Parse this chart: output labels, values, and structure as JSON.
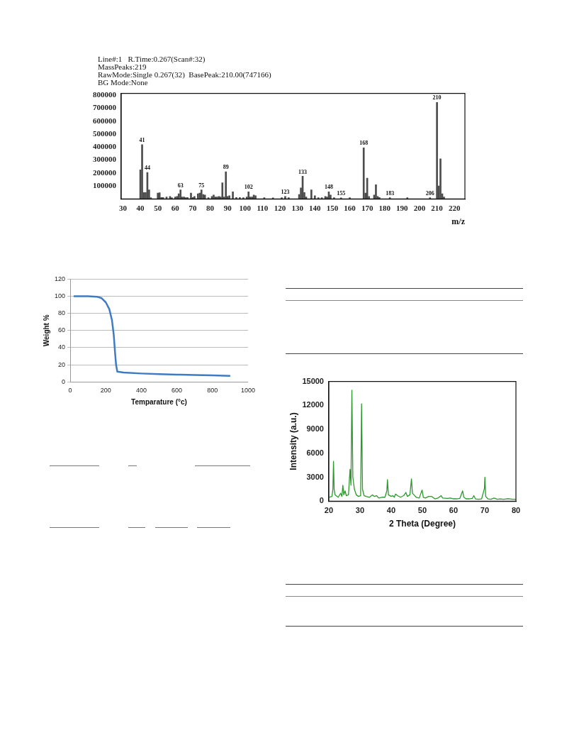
{
  "chart_data": [
    {
      "type": "bar",
      "xlabel": "m/z",
      "color": "#4d4d4d",
      "grid": false,
      "annotations": [
        "Line#:1   R.Time:0.267(Scan#:32)",
        "MassPeaks:219",
        "RawMode:Single 0.267(32)  BasePeak:210.00(747166)",
        "BG Mode:None",
        {
          "text": "41",
          "x": 41,
          "y": 420000
        },
        {
          "text": "44",
          "x": 44,
          "y": 205000
        },
        {
          "text": "63",
          "x": 63,
          "y": 70000
        },
        {
          "text": "75",
          "x": 75,
          "y": 70000
        },
        {
          "text": "89",
          "x": 89,
          "y": 210000
        },
        {
          "text": "102",
          "x": 102,
          "y": 55000
        },
        {
          "text": "123",
          "x": 123,
          "y": 20000
        },
        {
          "text": "133",
          "x": 133,
          "y": 175000
        },
        {
          "text": "148",
          "x": 148,
          "y": 55000
        },
        {
          "text": "155",
          "x": 155,
          "y": 8000
        },
        {
          "text": "168",
          "x": 168,
          "y": 395000
        },
        {
          "text": "183",
          "x": 183,
          "y": 10000
        },
        {
          "text": "206",
          "x": 206,
          "y": 10000
        },
        {
          "text": "210",
          "x": 210,
          "y": 745000
        }
      ],
      "x": [
        40,
        41,
        42,
        43,
        44,
        45,
        46,
        50,
        51,
        52,
        53,
        55,
        57,
        58,
        60,
        61,
        62,
        63,
        64,
        65,
        66,
        67,
        69,
        70,
        71,
        73,
        74,
        75,
        76,
        77,
        79,
        81,
        82,
        83,
        84,
        85,
        86,
        87,
        88,
        89,
        90,
        91,
        93,
        95,
        97,
        99,
        101,
        102,
        103,
        104,
        105,
        106,
        111,
        116,
        121,
        123,
        125,
        131,
        132,
        133,
        134,
        135,
        138,
        140,
        142,
        144,
        146,
        147,
        148,
        149,
        151,
        155,
        160,
        168,
        169,
        170,
        171,
        174,
        175,
        176,
        177,
        183,
        193,
        206,
        210,
        211,
        212,
        213,
        214
      ],
      "values": [
        225000,
        420000,
        50000,
        50000,
        205000,
        70000,
        10000,
        45000,
        48000,
        12000,
        12000,
        15000,
        20000,
        10000,
        15000,
        20000,
        40000,
        70000,
        15000,
        15000,
        10000,
        12000,
        45000,
        12000,
        20000,
        40000,
        45000,
        70000,
        35000,
        30000,
        10000,
        20000,
        30000,
        15000,
        15000,
        20000,
        15000,
        125000,
        15000,
        210000,
        20000,
        25000,
        55000,
        12000,
        12000,
        10000,
        15000,
        55000,
        15000,
        15000,
        30000,
        25000,
        10000,
        8000,
        10000,
        20000,
        10000,
        35000,
        85000,
        175000,
        50000,
        15000,
        70000,
        25000,
        10000,
        10000,
        20000,
        15000,
        55000,
        30000,
        10000,
        8000,
        10000,
        395000,
        45000,
        160000,
        20000,
        30000,
        110000,
        20000,
        12000,
        10000,
        10000,
        10000,
        745000,
        100000,
        310000,
        40000,
        15000
      ],
      "xlim": [
        29,
        226
      ],
      "xticks": [
        30,
        40,
        50,
        60,
        70,
        80,
        90,
        100,
        110,
        120,
        130,
        140,
        150,
        160,
        170,
        180,
        190,
        200,
        210,
        220
      ],
      "ylim": [
        0,
        815000
      ],
      "yticks": [
        100000,
        200000,
        300000,
        400000,
        500000,
        600000,
        700000,
        800000
      ]
    },
    {
      "type": "line",
      "xlabel": "Temparature (°c)",
      "ylabel": "Weight %",
      "color": "#3d7cc4",
      "grid": "y",
      "x": [
        20,
        100,
        150,
        175,
        200,
        220,
        235,
        245,
        252,
        258,
        265,
        300,
        400,
        500,
        600,
        700,
        800,
        900
      ],
      "values": [
        100,
        100,
        99.5,
        98,
        93,
        85,
        72,
        55,
        35,
        20,
        12,
        11,
        9.8,
        9,
        8.5,
        8,
        7.6,
        7
      ],
      "xlim": [
        0,
        1000
      ],
      "xticks": [
        0,
        200,
        400,
        600,
        800,
        1000
      ],
      "ylim": [
        0,
        120
      ],
      "yticks": [
        0,
        20,
        40,
        60,
        80,
        100,
        120
      ]
    },
    {
      "type": "line",
      "xlabel": "2 Theta (Degree)",
      "ylabel": "Intensity (a.u.)",
      "color": "#2a9a2a",
      "grid": false,
      "x": [
        20,
        21,
        21.3,
        21.5,
        21.7,
        22,
        23,
        23.8,
        24.2,
        24.5,
        24.8,
        25.2,
        25.6,
        26.3,
        26.8,
        27.1,
        27.4,
        27.7,
        28.2,
        28.8,
        29.5,
        30.2,
        30.5,
        30.8,
        31.3,
        32,
        33,
        34,
        34.6,
        35.3,
        36,
        37,
        38,
        38.6,
        38.8,
        39.1,
        40,
        40.5,
        41,
        41.4,
        42,
        43,
        44,
        44.7,
        45.2,
        46,
        46.5,
        46.8,
        47.3,
        48,
        49,
        49.9,
        50.3,
        51,
        52,
        53,
        54,
        55,
        56,
        56.5,
        58,
        59,
        60,
        61,
        62,
        62.9,
        63.3,
        64,
        65,
        66,
        66.5,
        67,
        68,
        69,
        69.9,
        70.05,
        70.3,
        71,
        72,
        73,
        74,
        75,
        76,
        77,
        78,
        79,
        80
      ],
      "values": [
        500,
        600,
        1500,
        5000,
        1500,
        800,
        500,
        1000,
        600,
        2000,
        800,
        1300,
        700,
        800,
        4000,
        2000,
        13900,
        3000,
        1500,
        800,
        600,
        700,
        12200,
        1500,
        700,
        600,
        500,
        800,
        600,
        700,
        400,
        500,
        500,
        1300,
        2700,
        800,
        600,
        700,
        500,
        900,
        700,
        500,
        700,
        1100,
        600,
        800,
        2800,
        1000,
        800,
        500,
        400,
        1400,
        500,
        400,
        600,
        600,
        300,
        400,
        700,
        400,
        350,
        400,
        300,
        300,
        350,
        1300,
        500,
        300,
        300,
        350,
        700,
        300,
        250,
        300,
        1600,
        3000,
        600,
        300,
        250,
        400,
        250,
        300,
        250,
        300,
        300,
        250,
        250
      ],
      "xlim": [
        20,
        80
      ],
      "xticks": [
        20,
        30,
        40,
        50,
        60,
        70,
        80
      ],
      "ylim": [
        0,
        15000
      ],
      "yticks": [
        0,
        3000,
        6000,
        9000,
        12000,
        15000
      ]
    }
  ]
}
